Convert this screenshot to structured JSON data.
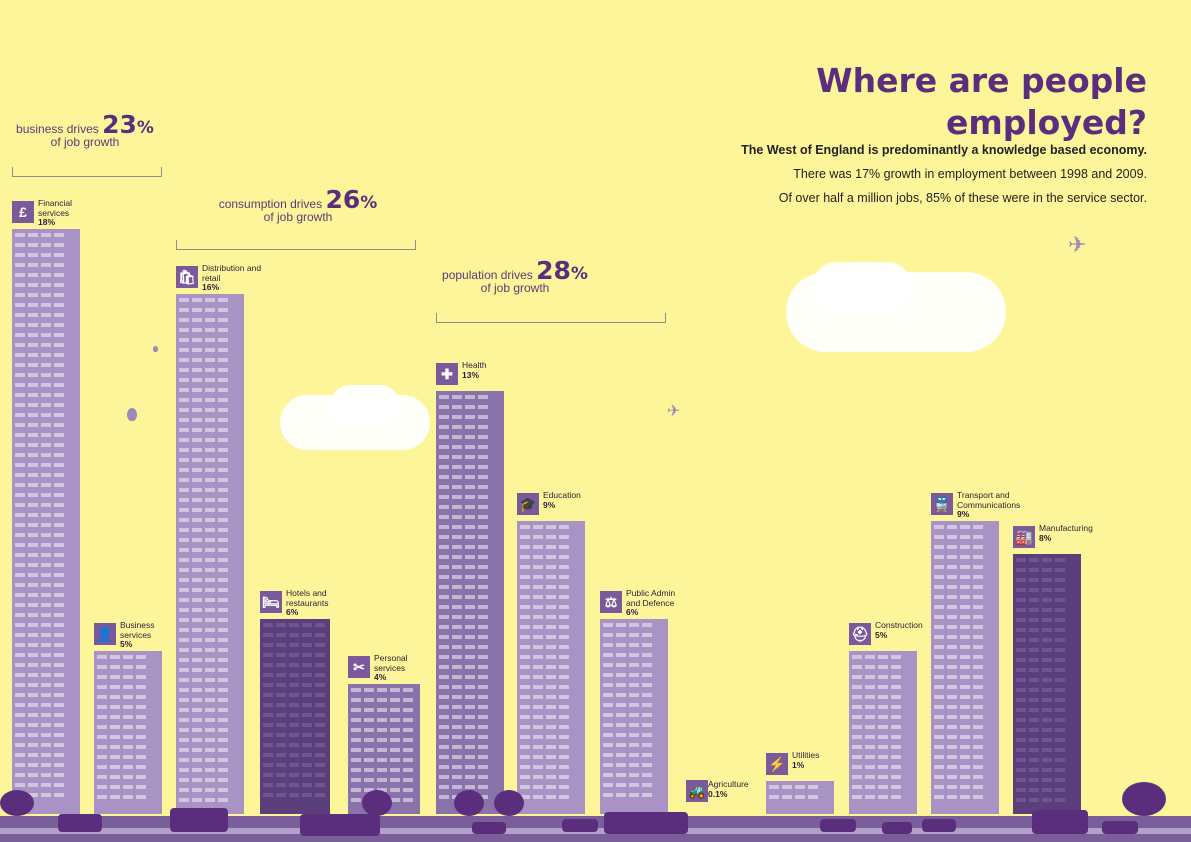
{
  "title": "Where are people employed?",
  "intro": {
    "lead": "The West of England is predominantly a knowledge based economy.",
    "line2": "There was 17% growth in employment between 1998 and 2009.",
    "line3": "Of over half a million jobs, 85% of these were in the service sector."
  },
  "drivers": [
    {
      "text": "business drives",
      "pct": "23",
      "unit": "%",
      "sub": "of job growth"
    },
    {
      "text": "consumption drives",
      "pct": "26",
      "unit": "%",
      "sub": "of job growth"
    },
    {
      "text": "population drives",
      "pct": "28",
      "unit": "%",
      "sub": "of job growth"
    }
  ],
  "colors": {
    "background": "#fdf59a",
    "title": "#5b2d7d",
    "building_light": "#a893c4",
    "building_mid": "#8a73ab",
    "building_dark": "#5b3f7c",
    "window_light": "#f3eef8"
  },
  "chart_data": {
    "type": "bar",
    "title": "Where are people employed?",
    "categories": [
      "Financial services",
      "Business services",
      "Distribution and retail",
      "Hotels and restaurants",
      "Personal services",
      "Health",
      "Education",
      "Public Admin and Defence",
      "Agriculture",
      "Utilities",
      "Construction",
      "Transport and Communications",
      "Manufacturing"
    ],
    "values": [
      18,
      5,
      16,
      6,
      4,
      13,
      9,
      6,
      0.1,
      1,
      5,
      9,
      8
    ],
    "labels": [
      "18%",
      "5%",
      "16%",
      "6%",
      "4%",
      "13%",
      "9%",
      "6%",
      "0.1%",
      "1%",
      "5%",
      "9%",
      "8%"
    ],
    "icons": [
      "pound-icon",
      "person-icon",
      "shopping-bag-icon",
      "bed-fork-icon",
      "scissors-icon",
      "cross-icon",
      "mortarboard-icon",
      "gavel-icon",
      "tractor-icon",
      "lightning-icon",
      "hardhat-icon",
      "train-icon",
      "factory-icon"
    ],
    "ylim": [
      0,
      18
    ],
    "grid": false,
    "groups": [
      {
        "driver": "business drives",
        "members": [
          "Financial services",
          "Business services"
        ]
      },
      {
        "driver": "consumption drives",
        "members": [
          "Distribution and retail",
          "Hotels and restaurants",
          "Personal services"
        ]
      },
      {
        "driver": "population drives",
        "members": [
          "Health",
          "Education",
          "Public Admin and Defence"
        ]
      }
    ]
  }
}
